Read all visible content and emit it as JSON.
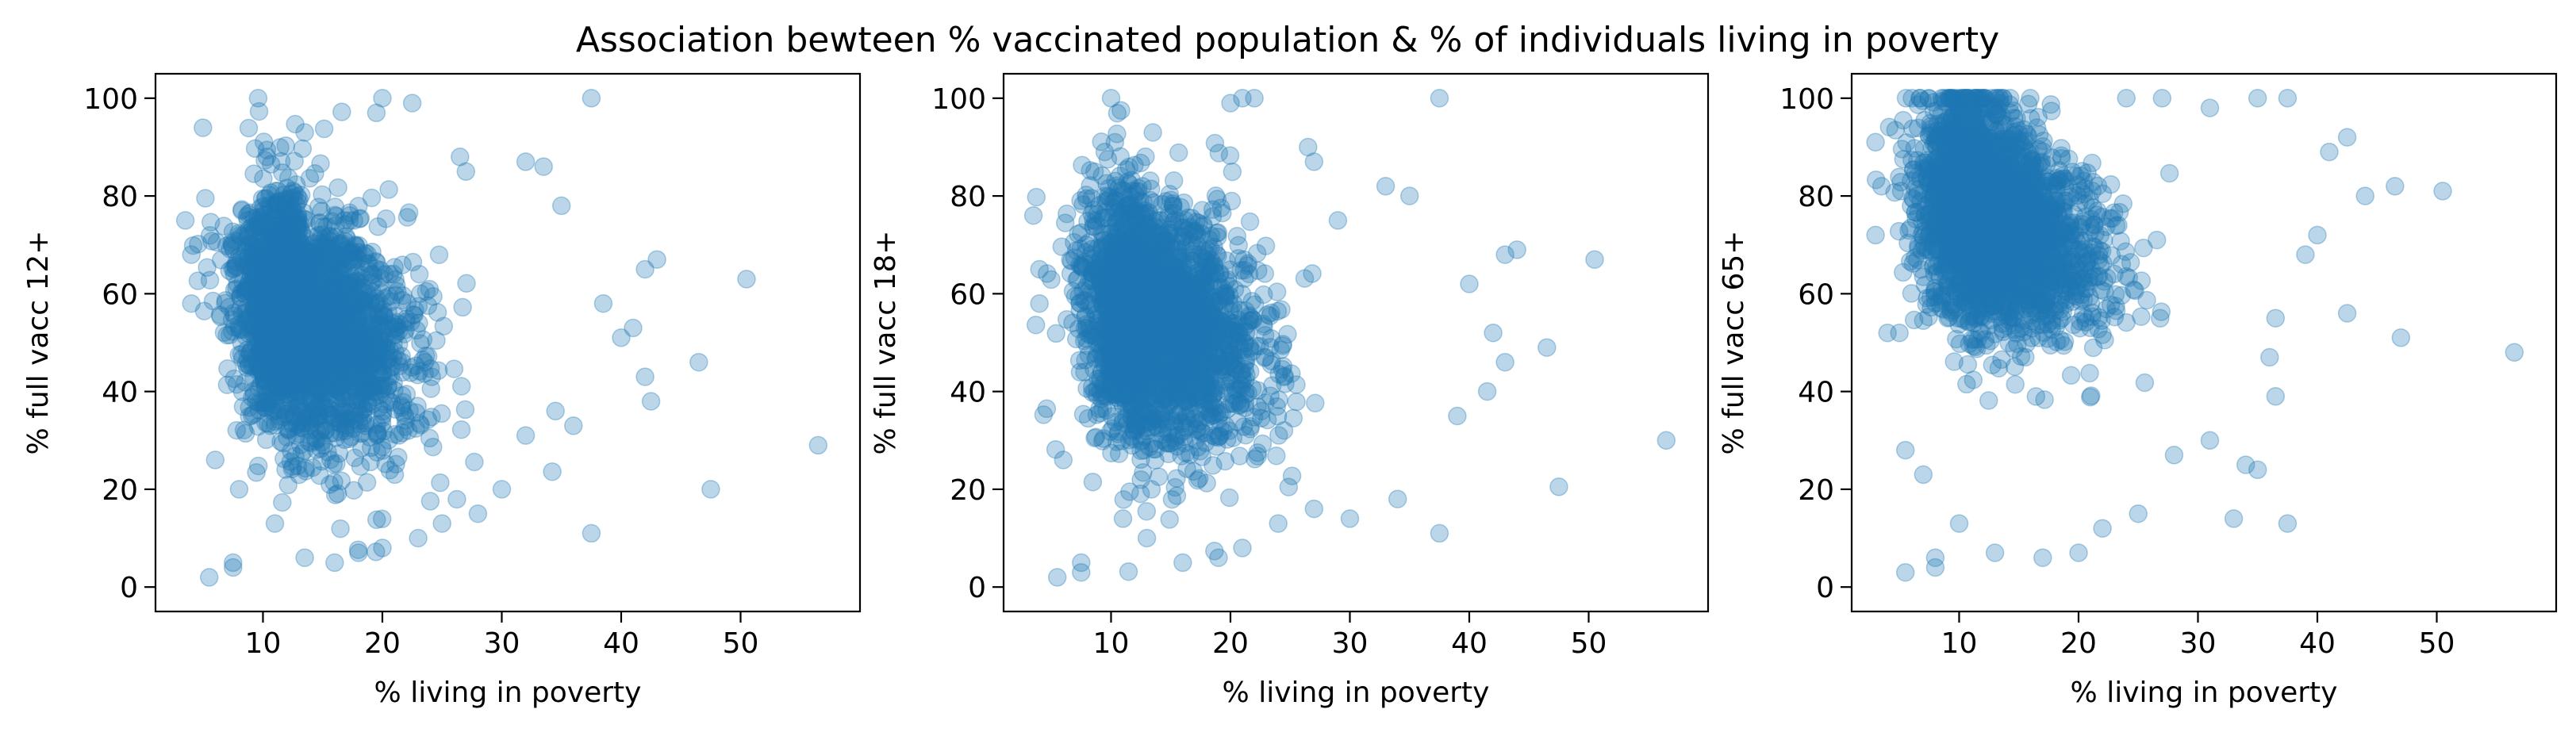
{
  "figure": {
    "title": "Association bewteen % vaccinated population & % of individuals living in poverty"
  },
  "colors": {
    "marker": "#1f77b4",
    "marker_alpha": 0.3,
    "axes": "#000000",
    "background": "#ffffff"
  },
  "chart_data": [
    {
      "type": "scatter",
      "xlabel": "% living in poverty",
      "ylabel": "% full vacc 12+",
      "xlim": [
        1,
        60
      ],
      "ylim": [
        -5,
        105
      ],
      "xticks": [
        10,
        20,
        30,
        40,
        50
      ],
      "yticks": [
        0,
        20,
        40,
        60,
        80,
        100
      ],
      "cluster": {
        "center_x": 13,
        "center_y": 55,
        "spread_x": 4.5,
        "spread_y": 12,
        "count": 2600
      },
      "points": [
        [
          9.6,
          100
        ],
        [
          20,
          100
        ],
        [
          22.5,
          99
        ],
        [
          37.5,
          100
        ],
        [
          13.5,
          93
        ],
        [
          19.5,
          97
        ],
        [
          26.5,
          88
        ],
        [
          27,
          85
        ],
        [
          32,
          87
        ],
        [
          33.5,
          86
        ],
        [
          35,
          78
        ],
        [
          38.5,
          58
        ],
        [
          40,
          51
        ],
        [
          41,
          53
        ],
        [
          42,
          65
        ],
        [
          43,
          67
        ],
        [
          42,
          43
        ],
        [
          42.5,
          38
        ],
        [
          46.5,
          46
        ],
        [
          50.5,
          63
        ],
        [
          56.5,
          29
        ],
        [
          47.5,
          20
        ],
        [
          37.5,
          11
        ],
        [
          36,
          33
        ],
        [
          34.5,
          36
        ],
        [
          32,
          31
        ],
        [
          30,
          20
        ],
        [
          28,
          15
        ],
        [
          25,
          13
        ],
        [
          23,
          10
        ],
        [
          20,
          8
        ],
        [
          18,
          7
        ],
        [
          16,
          5
        ],
        [
          13.5,
          6
        ],
        [
          11,
          13
        ],
        [
          7.5,
          5
        ],
        [
          7.5,
          4
        ],
        [
          5.5,
          2
        ],
        [
          6,
          26
        ],
        [
          8,
          20
        ],
        [
          4,
          58
        ],
        [
          3.5,
          75
        ],
        [
          4,
          68
        ]
      ]
    },
    {
      "type": "scatter",
      "xlabel": "% living in poverty",
      "ylabel": "% full vacc 18+",
      "xlim": [
        1,
        60
      ],
      "ylim": [
        -5,
        105
      ],
      "xticks": [
        10,
        20,
        30,
        40,
        50
      ],
      "yticks": [
        0,
        20,
        40,
        60,
        80,
        100
      ],
      "cluster": {
        "center_x": 13,
        "center_y": 55,
        "spread_x": 4.5,
        "spread_y": 12,
        "count": 2600
      },
      "points": [
        [
          10,
          100
        ],
        [
          21,
          100
        ],
        [
          22,
          100
        ],
        [
          37.5,
          100
        ],
        [
          13.5,
          93
        ],
        [
          20,
          99
        ],
        [
          26.5,
          90
        ],
        [
          27,
          87
        ],
        [
          33,
          82
        ],
        [
          35,
          80
        ],
        [
          29,
          75
        ],
        [
          40,
          62
        ],
        [
          43,
          68
        ],
        [
          44,
          69
        ],
        [
          50.5,
          67
        ],
        [
          56.5,
          30
        ],
        [
          47.5,
          20.5
        ],
        [
          46.5,
          49
        ],
        [
          42,
          52
        ],
        [
          43,
          46
        ],
        [
          41.5,
          40
        ],
        [
          39,
          35
        ],
        [
          37.5,
          11
        ],
        [
          34,
          18
        ],
        [
          30,
          14
        ],
        [
          27,
          16
        ],
        [
          24,
          13
        ],
        [
          21,
          8
        ],
        [
          19,
          6
        ],
        [
          16,
          5
        ],
        [
          13,
          10
        ],
        [
          11,
          14
        ],
        [
          7.5,
          5
        ],
        [
          7.5,
          3
        ],
        [
          5.5,
          2
        ],
        [
          6,
          26
        ],
        [
          4,
          58
        ],
        [
          3.5,
          76
        ],
        [
          4,
          65
        ]
      ]
    },
    {
      "type": "scatter",
      "xlabel": "% living in poverty",
      "ylabel": "% full vacc 65+",
      "xlim": [
        1,
        60
      ],
      "ylim": [
        -5,
        105
      ],
      "xticks": [
        10,
        20,
        30,
        40,
        50
      ],
      "yticks": [
        0,
        20,
        40,
        60,
        80,
        100
      ],
      "cluster": {
        "center_x": 12,
        "center_y": 76,
        "spread_x": 4.5,
        "spread_y": 11,
        "count": 2800
      },
      "points": [
        [
          35,
          100
        ],
        [
          37.5,
          100
        ],
        [
          27,
          100
        ],
        [
          24,
          100
        ],
        [
          31,
          98
        ],
        [
          42.5,
          92
        ],
        [
          41,
          89
        ],
        [
          46.5,
          82
        ],
        [
          50.5,
          81
        ],
        [
          44,
          80
        ],
        [
          40,
          72
        ],
        [
          39,
          68
        ],
        [
          42.5,
          56
        ],
        [
          36.5,
          55
        ],
        [
          36,
          47
        ],
        [
          36.5,
          39
        ],
        [
          47,
          51
        ],
        [
          56.5,
          48
        ],
        [
          34,
          25
        ],
        [
          35,
          24
        ],
        [
          33,
          14
        ],
        [
          37.5,
          13
        ],
        [
          31,
          30
        ],
        [
          28,
          27
        ],
        [
          25,
          15
        ],
        [
          22,
          12
        ],
        [
          20,
          7
        ],
        [
          17,
          6
        ],
        [
          13,
          7
        ],
        [
          10,
          13
        ],
        [
          8,
          4
        ],
        [
          8,
          6
        ],
        [
          5.5,
          3
        ],
        [
          5.5,
          28
        ],
        [
          7,
          23
        ],
        [
          4,
          52
        ],
        [
          5,
          52
        ],
        [
          3,
          72
        ],
        [
          3.5,
          82
        ],
        [
          3,
          91
        ]
      ]
    }
  ]
}
